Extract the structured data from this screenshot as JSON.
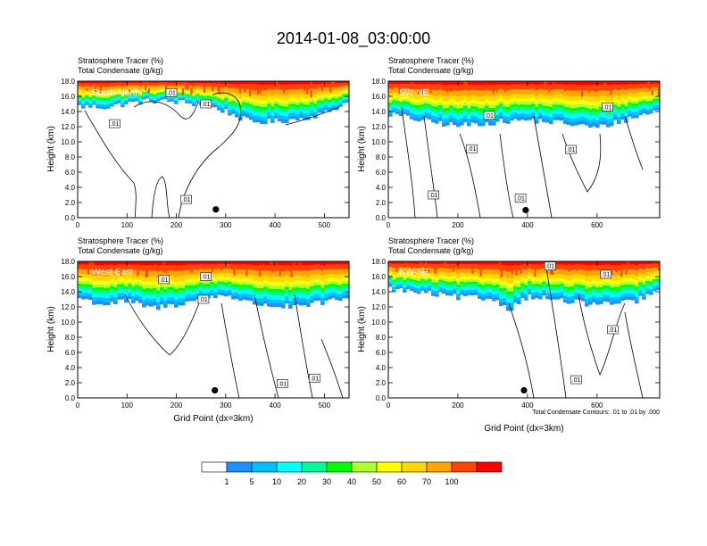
{
  "figure": {
    "title": "2014-01-08_03:00:00",
    "footnote": "Total Condensate Contours: .01 to .01 by .000"
  },
  "colorbar": {
    "colors": [
      "#ffffff",
      "#1e90ff",
      "#00bfff",
      "#00ffff",
      "#00fa9a",
      "#00ff00",
      "#adff2f",
      "#ffff00",
      "#ffd700",
      "#ffa500",
      "#ff4500",
      "#ff0000"
    ],
    "labels": [
      "1",
      "5",
      "10",
      "20",
      "30",
      "40",
      "50",
      "60",
      "70",
      "100"
    ]
  },
  "chart_data": [
    {
      "type": "heatmap",
      "title": "South-North",
      "subtitle_lines": [
        "Stratosphere Tracer   (%)",
        "Total Condensate   (g/kg)"
      ],
      "xlabel": "",
      "ylabel": "Height (km)",
      "xlim": [
        0,
        550
      ],
      "ylim": [
        0,
        18
      ],
      "xticks": [
        0,
        100,
        200,
        300,
        400,
        500
      ],
      "yticks": [
        "0.0",
        "2.0",
        "4.0",
        "6.0",
        "8.0",
        "10.0",
        "12.0",
        "14.0",
        "16.0",
        "18.0"
      ],
      "tracer_base_km": [
        [
          0,
          14.5
        ],
        [
          60,
          14.4
        ],
        [
          100,
          14.9
        ],
        [
          150,
          15.3
        ],
        [
          200,
          15.1
        ],
        [
          250,
          14.8
        ],
        [
          300,
          13.8
        ],
        [
          350,
          12.3
        ],
        [
          400,
          12.4
        ],
        [
          450,
          12.8
        ],
        [
          500,
          13.5
        ],
        [
          550,
          15.2
        ]
      ],
      "contour_labels": [
        ".01",
        ".01",
        ".01",
        ".01"
      ],
      "contour_label_pos": [
        [
          75,
          12.4
        ],
        [
          190,
          16.5
        ],
        [
          260,
          15.0
        ],
        [
          220,
          2.4
        ]
      ],
      "marker": [
        280,
        1.1
      ]
    },
    {
      "type": "heatmap",
      "title": "SW-NE",
      "subtitle_lines": [
        "Stratosphere Tracer   (%)",
        "Total Condensate   (g/kg)"
      ],
      "xlabel": "",
      "ylabel": "Height (km)",
      "xlim": [
        0,
        780
      ],
      "ylim": [
        0,
        18
      ],
      "xticks": [
        0,
        200,
        400,
        600
      ],
      "yticks": [
        "0.0",
        "2.0",
        "4.0",
        "6.0",
        "8.0",
        "10.0",
        "12.0",
        "14.0",
        "16.0",
        "18.0"
      ],
      "tracer_base_km": [
        [
          0,
          13.5
        ],
        [
          100,
          12.5
        ],
        [
          200,
          11.8
        ],
        [
          300,
          12.3
        ],
        [
          400,
          12.6
        ],
        [
          500,
          12.2
        ],
        [
          600,
          11.5
        ],
        [
          700,
          12.9
        ],
        [
          780,
          14.0
        ]
      ],
      "contour_labels": [
        ".01",
        ".01",
        ".01",
        ".01",
        ".01",
        ".01"
      ],
      "contour_label_pos": [
        [
          130,
          3.0
        ],
        [
          290,
          13.5
        ],
        [
          240,
          9.1
        ],
        [
          380,
          2.6
        ],
        [
          525,
          9.0
        ],
        [
          630,
          14.6
        ]
      ],
      "marker": [
        395,
        1.0
      ]
    },
    {
      "type": "heatmap",
      "title": "West-East",
      "subtitle_lines": [
        "Stratosphere Tracer   (%)",
        "Total Condensate   (g/kg)"
      ],
      "xlabel": "Grid Point (dx=3km)",
      "ylabel": "Height (km)",
      "xlim": [
        0,
        550
      ],
      "ylim": [
        0,
        18
      ],
      "xticks": [
        0,
        100,
        200,
        300,
        400,
        500
      ],
      "yticks": [
        "0.0",
        "2.0",
        "4.0",
        "6.0",
        "8.0",
        "10.0",
        "12.0",
        "14.0",
        "16.0",
        "18.0"
      ],
      "tracer_base_km": [
        [
          0,
          13.0
        ],
        [
          50,
          12.0
        ],
        [
          100,
          12.5
        ],
        [
          150,
          11.5
        ],
        [
          200,
          12.0
        ],
        [
          250,
          12.8
        ],
        [
          300,
          13.4
        ],
        [
          350,
          12.2
        ],
        [
          400,
          11.8
        ],
        [
          450,
          11.6
        ],
        [
          500,
          12.4
        ],
        [
          550,
          12.8
        ]
      ],
      "contour_labels": [
        ".01",
        ".01",
        ".01",
        ".01",
        ".01"
      ],
      "contour_label_pos": [
        [
          175,
          15.6
        ],
        [
          260,
          16.0
        ],
        [
          255,
          13.0
        ],
        [
          415,
          1.9
        ],
        [
          480,
          2.6
        ]
      ],
      "marker": [
        278,
        1.0
      ]
    },
    {
      "type": "heatmap",
      "title": "NW-SE",
      "subtitle_lines": [
        "Stratosphere Tracer   (%)",
        "Total Condensate   (g/kg)"
      ],
      "xlabel": "Grid Point (dx=3km)",
      "ylabel": "Height (km)",
      "xlim": [
        0,
        780
      ],
      "ylim": [
        0,
        18
      ],
      "xticks": [
        0,
        200,
        400,
        600
      ],
      "yticks": [
        "0.0",
        "2.0",
        "4.0",
        "6.0",
        "8.0",
        "10.0",
        "12.0",
        "14.0",
        "16.0",
        "18.0"
      ],
      "tracer_base_km": [
        [
          0,
          14.2
        ],
        [
          100,
          13.6
        ],
        [
          200,
          13.0
        ],
        [
          300,
          12.8
        ],
        [
          350,
          11.4
        ],
        [
          400,
          13.2
        ],
        [
          500,
          12.5
        ],
        [
          600,
          12.0
        ],
        [
          700,
          12.3
        ],
        [
          780,
          14.0
        ]
      ],
      "contour_labels": [
        ".01",
        ".01",
        ".01",
        ".01"
      ],
      "contour_label_pos": [
        [
          465,
          17.4
        ],
        [
          625,
          16.3
        ],
        [
          645,
          9.0
        ],
        [
          540,
          2.4
        ]
      ],
      "marker": [
        390,
        1.0
      ]
    }
  ]
}
